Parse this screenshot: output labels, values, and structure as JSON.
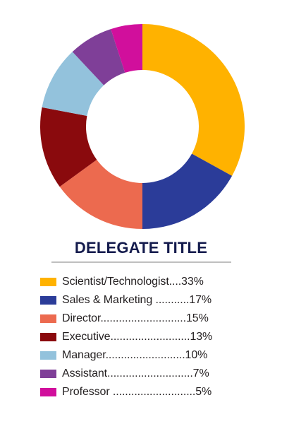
{
  "chart_data": {
    "type": "pie",
    "title": "DELEGATE TITLE",
    "donut": true,
    "legend_position": "bottom",
    "slices": [
      {
        "label": "Scientist/Technologist",
        "legend_text": "Scientist/Technologist....33%",
        "value": 33,
        "color": "#ffb200"
      },
      {
        "label": "Sales & Marketing",
        "legend_text": "Sales & Marketing ...........17%",
        "value": 17,
        "color": "#2b3c99"
      },
      {
        "label": "Director",
        "legend_text": "Director............................15%",
        "value": 15,
        "color": "#ec6a4f"
      },
      {
        "label": "Executive",
        "legend_text": "Executive..........................13%",
        "value": 13,
        "color": "#8a0a0d"
      },
      {
        "label": "Manager",
        "legend_text": "Manager..........................10%",
        "value": 10,
        "color": "#93c2dc"
      },
      {
        "label": "Assistant",
        "legend_text": "Assistant............................7%",
        "value": 7,
        "color": "#7f3f98"
      },
      {
        "label": "Professor",
        "legend_text": "Professor ...........................5%",
        "value": 5,
        "color": "#d10f9c"
      }
    ]
  }
}
